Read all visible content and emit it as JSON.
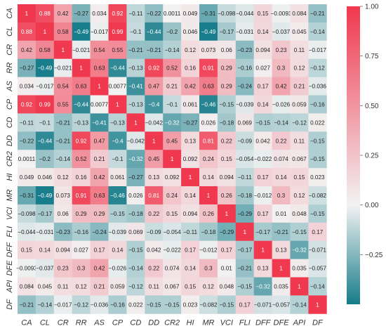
{
  "chart_data": {
    "type": "heatmap",
    "title": "",
    "xlabel": "",
    "ylabel": "",
    "labels": [
      "CA",
      "CL",
      "CR",
      "RR",
      "AS",
      "CP",
      "CD",
      "DD",
      "CR2",
      "HI",
      "MR",
      "VCI",
      "FLI",
      "DFF",
      "DFE",
      "API",
      "DF"
    ],
    "matrix": [
      [
        1,
        0.88,
        0.42,
        -0.27,
        0.034,
        0.92,
        -0.11,
        -0.22,
        0.0011,
        0.049,
        -0.31,
        -0.098,
        -0.044,
        0.15,
        -0.0093,
        0.084,
        -0.21
      ],
      [
        0.88,
        1,
        0.58,
        -0.49,
        -0.017,
        0.99,
        -0.1,
        -0.44,
        -0.2,
        0.046,
        -0.49,
        -0.17,
        -0.031,
        0.14,
        -0.037,
        0.045,
        -0.14
      ],
      [
        0.42,
        0.58,
        1,
        -0.021,
        0.54,
        0.55,
        -0.21,
        -0.21,
        -0.14,
        0.12,
        0.073,
        0.06,
        -0.23,
        0.094,
        0.23,
        0.11,
        -0.017
      ],
      [
        -0.27,
        -0.49,
        -0.021,
        1,
        0.63,
        -0.44,
        -0.13,
        0.92,
        0.52,
        0.16,
        0.91,
        0.29,
        -0.16,
        0.027,
        0.3,
        0.12,
        -0.12
      ],
      [
        0.034,
        -0.017,
        0.54,
        0.63,
        1,
        0.0077,
        -0.41,
        0.47,
        0.21,
        0.42,
        0.63,
        0.29,
        -0.24,
        0.17,
        0.42,
        0.21,
        -0.036
      ],
      [
        0.92,
        0.99,
        0.55,
        -0.44,
        0.0077,
        1,
        -0.13,
        -0.4,
        -0.1,
        0.061,
        -0.46,
        -0.15,
        -0.039,
        0.14,
        -0.026,
        0.059,
        -0.16
      ],
      [
        -0.11,
        -0.1,
        -0.21,
        -0.13,
        -0.41,
        -0.13,
        1,
        -0.042,
        -0.32,
        -0.27,
        0.026,
        -0.18,
        0.069,
        -0.15,
        -0.14,
        -0.12,
        0.022
      ],
      [
        -0.22,
        -0.44,
        -0.21,
        0.92,
        0.47,
        -0.4,
        -0.042,
        1,
        0.45,
        0.13,
        0.81,
        0.22,
        -0.09,
        0.042,
        0.22,
        0.11,
        -0.15
      ],
      [
        0.0011,
        -0.2,
        -0.14,
        0.52,
        0.21,
        -0.1,
        -0.32,
        0.45,
        1,
        0.092,
        0.24,
        0.15,
        -0.054,
        -0.022,
        0.074,
        0.067,
        -0.15
      ],
      [
        0.049,
        0.046,
        0.12,
        0.16,
        0.42,
        0.061,
        -0.27,
        0.13,
        0.092,
        1,
        0.14,
        0.094,
        -0.11,
        0.17,
        0.14,
        0.15,
        0.023
      ],
      [
        -0.31,
        -0.49,
        0.073,
        0.91,
        0.63,
        -0.46,
        0.026,
        0.81,
        0.24,
        0.14,
        1,
        0.26,
        -0.18,
        -0.012,
        0.3,
        0.12,
        -0.082
      ],
      [
        -0.098,
        -0.17,
        0.06,
        0.29,
        0.29,
        -0.15,
        -0.18,
        0.22,
        0.15,
        0.094,
        0.26,
        1,
        -0.29,
        0.17,
        0.01,
        0.048,
        -0.15
      ],
      [
        -0.044,
        -0.031,
        -0.23,
        -0.16,
        -0.24,
        -0.039,
        0.069,
        -0.09,
        -0.054,
        -0.11,
        -0.18,
        -0.29,
        1,
        -0.17,
        -0.21,
        -0.15,
        0.17
      ],
      [
        0.15,
        0.14,
        0.094,
        0.027,
        0.17,
        0.14,
        -0.15,
        0.042,
        -0.022,
        0.17,
        -0.012,
        0.17,
        -0.17,
        1,
        0.13,
        -0.32,
        -0.071
      ],
      [
        -0.0093,
        -0.037,
        0.23,
        0.3,
        0.42,
        -0.026,
        -0.14,
        0.22,
        0.074,
        0.14,
        0.3,
        0.01,
        -0.21,
        0.13,
        1,
        0.035,
        -0.057
      ],
      [
        0.084,
        0.045,
        0.11,
        0.12,
        0.21,
        0.059,
        -0.12,
        0.11,
        0.067,
        0.15,
        0.12,
        0.048,
        -0.15,
        -0.32,
        0.035,
        1,
        -0.14
      ],
      [
        -0.21,
        -0.14,
        -0.017,
        -0.12,
        -0.036,
        -0.16,
        0.022,
        -0.15,
        -0.15,
        0.023,
        -0.082,
        -0.15,
        0.17,
        -0.071,
        -0.057,
        -0.14,
        1
      ]
    ],
    "colorbar": {
      "range": [
        -0.5,
        1.0
      ],
      "ticks": [
        -0.25,
        0.0,
        0.25,
        0.5,
        0.75,
        1.0
      ],
      "tick_labels": [
        "−0.25",
        "0.00",
        "0.25",
        "0.50",
        "0.75",
        "1.00"
      ]
    },
    "colors": {
      "negative": "#157c89",
      "center": "#f2f2f2",
      "positive": "#f0384e"
    },
    "grid": false,
    "legend": "colorbar-right"
  }
}
